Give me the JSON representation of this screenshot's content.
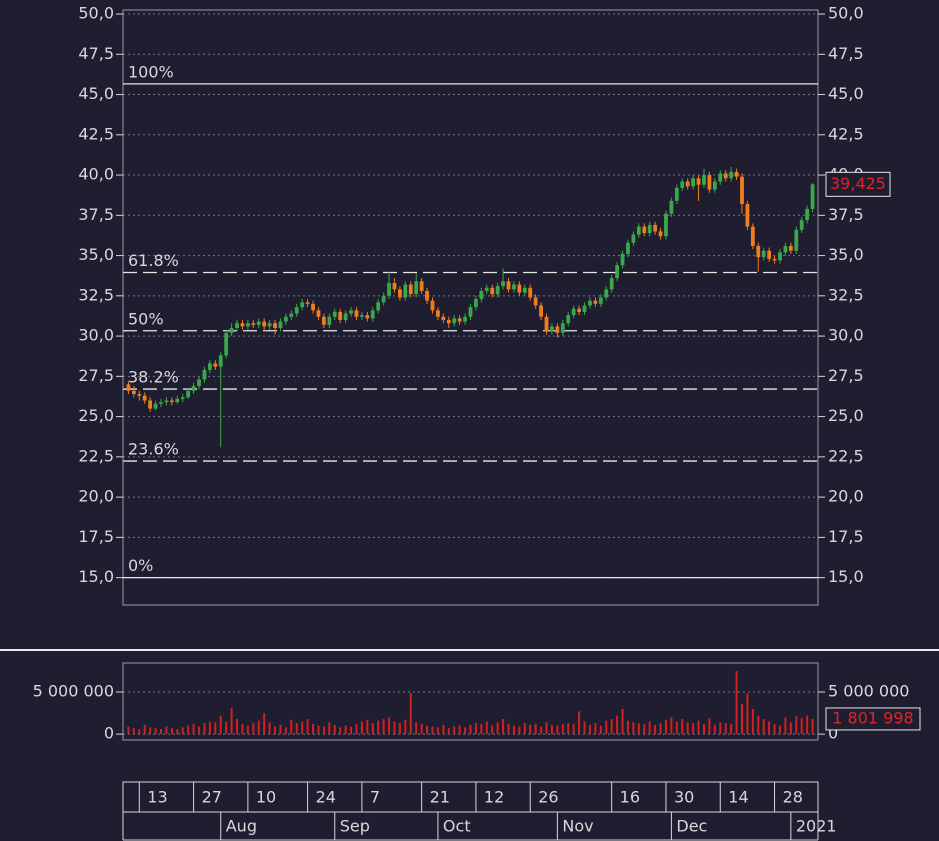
{
  "chart_data": {
    "type": "candlestick",
    "up_color": "#3aa84a",
    "down_color": "#f07c1c",
    "grid": true,
    "xlim": [
      -1,
      127
    ],
    "ylim": [
      13.3,
      50.25
    ],
    "yticks": [
      {
        "value": 15,
        "label": "15,0"
      },
      {
        "value": 17.5,
        "label": "17,5"
      },
      {
        "value": 20,
        "label": "20,0"
      },
      {
        "value": 22.5,
        "label": "22,5"
      },
      {
        "value": 25,
        "label": "25,0"
      },
      {
        "value": 27.5,
        "label": "27,5"
      },
      {
        "value": 30,
        "label": "30,0"
      },
      {
        "value": 32.5,
        "label": "32,5"
      },
      {
        "value": 35,
        "label": "35,0"
      },
      {
        "value": 37.5,
        "label": "37,5"
      },
      {
        "value": 40,
        "label": "40,0"
      },
      {
        "value": 42.5,
        "label": "42,5"
      },
      {
        "value": 45,
        "label": "45,0"
      },
      {
        "value": 47.5,
        "label": "47,5"
      },
      {
        "value": 50,
        "label": "50,0"
      }
    ],
    "fib_levels": [
      {
        "label": "100%",
        "value": 45.66
      },
      {
        "label": "61.8%",
        "value": 33.95
      },
      {
        "label": "50%",
        "value": 30.33
      },
      {
        "label": "38.2%",
        "value": 26.71
      },
      {
        "label": "23.6%",
        "value": 22.24
      },
      {
        "label": "0%",
        "value": 15.0
      }
    ],
    "last_price": {
      "value": 39.425,
      "label": "39,425"
    },
    "candles": [
      [
        27.0,
        27.2,
        26.4,
        26.6
      ],
      [
        26.6,
        26.9,
        26.2,
        26.4
      ],
      [
        26.4,
        26.6,
        26.0,
        26.3
      ],
      [
        26.3,
        26.5,
        25.8,
        26.0
      ],
      [
        26.0,
        26.2,
        25.3,
        25.5
      ],
      [
        25.5,
        26.0,
        25.4,
        25.8
      ],
      [
        25.8,
        26.1,
        25.6,
        25.9
      ],
      [
        25.9,
        26.2,
        25.7,
        26.0
      ],
      [
        26.0,
        26.2,
        25.7,
        25.9
      ],
      [
        25.9,
        26.3,
        25.8,
        26.1
      ],
      [
        26.1,
        26.4,
        25.9,
        26.2
      ],
      [
        26.2,
        26.8,
        26.1,
        26.6
      ],
      [
        26.6,
        27.1,
        26.4,
        26.9
      ],
      [
        26.9,
        27.5,
        26.7,
        27.3
      ],
      [
        27.3,
        28.1,
        27.1,
        27.9
      ],
      [
        27.9,
        28.5,
        27.7,
        28.3
      ],
      [
        28.3,
        28.5,
        27.9,
        28.1
      ],
      [
        28.1,
        29.0,
        23.1,
        28.8
      ],
      [
        28.8,
        30.4,
        28.6,
        30.2
      ],
      [
        30.2,
        30.8,
        30.0,
        30.5
      ],
      [
        30.5,
        31.0,
        30.3,
        30.8
      ],
      [
        30.8,
        31.0,
        30.4,
        30.6
      ],
      [
        30.6,
        31.0,
        30.4,
        30.8
      ],
      [
        30.8,
        31.0,
        30.5,
        30.7
      ],
      [
        30.7,
        31.1,
        30.5,
        30.9
      ],
      [
        30.9,
        31.1,
        30.3,
        30.6
      ],
      [
        30.6,
        31.0,
        30.4,
        30.8
      ],
      [
        30.8,
        31.0,
        30.1,
        30.5
      ],
      [
        30.5,
        31.1,
        30.3,
        30.9
      ],
      [
        30.9,
        31.4,
        30.7,
        31.2
      ],
      [
        31.2,
        31.6,
        31.0,
        31.4
      ],
      [
        31.4,
        32.0,
        31.2,
        31.8
      ],
      [
        31.8,
        32.3,
        31.6,
        32.1
      ],
      [
        32.1,
        32.3,
        31.8,
        32.0
      ],
      [
        32.0,
        32.2,
        31.4,
        31.6
      ],
      [
        31.6,
        31.8,
        31.0,
        31.2
      ],
      [
        31.2,
        31.4,
        30.5,
        30.7
      ],
      [
        30.7,
        31.4,
        30.5,
        31.2
      ],
      [
        31.2,
        31.7,
        31.0,
        31.5
      ],
      [
        31.5,
        31.7,
        30.8,
        31.0
      ],
      [
        31.0,
        31.6,
        30.8,
        31.4
      ],
      [
        31.4,
        31.8,
        31.2,
        31.6
      ],
      [
        31.6,
        31.8,
        31.0,
        31.2
      ],
      [
        31.2,
        31.5,
        31.0,
        31.3
      ],
      [
        31.3,
        31.5,
        30.9,
        31.1
      ],
      [
        31.1,
        31.8,
        30.9,
        31.6
      ],
      [
        31.6,
        32.3,
        31.4,
        32.1
      ],
      [
        32.1,
        32.7,
        31.9,
        32.5
      ],
      [
        32.5,
        34.0,
        32.3,
        33.3
      ],
      [
        33.3,
        33.6,
        32.7,
        32.9
      ],
      [
        32.9,
        33.1,
        32.2,
        32.4
      ],
      [
        32.4,
        33.4,
        32.2,
        33.2
      ],
      [
        33.2,
        33.4,
        32.4,
        32.6
      ],
      [
        32.6,
        33.9,
        32.4,
        33.4
      ],
      [
        33.4,
        33.6,
        32.6,
        32.8
      ],
      [
        32.8,
        33.0,
        32.0,
        32.2
      ],
      [
        32.2,
        32.4,
        31.4,
        31.6
      ],
      [
        31.6,
        31.8,
        31.0,
        31.2
      ],
      [
        31.2,
        31.4,
        30.8,
        31.0
      ],
      [
        31.0,
        31.2,
        30.5,
        30.8
      ],
      [
        30.8,
        31.3,
        30.6,
        31.1
      ],
      [
        31.1,
        31.3,
        30.7,
        30.9
      ],
      [
        30.9,
        31.4,
        30.7,
        31.2
      ],
      [
        31.2,
        32.0,
        31.0,
        31.8
      ],
      [
        31.8,
        32.5,
        31.6,
        32.3
      ],
      [
        32.3,
        33.0,
        32.1,
        32.8
      ],
      [
        32.8,
        33.2,
        32.6,
        33.0
      ],
      [
        33.0,
        33.2,
        32.4,
        32.6
      ],
      [
        32.6,
        33.3,
        32.4,
        33.1
      ],
      [
        33.1,
        34.2,
        32.9,
        33.4
      ],
      [
        33.4,
        33.6,
        32.7,
        32.9
      ],
      [
        32.9,
        33.4,
        32.7,
        33.2
      ],
      [
        33.2,
        33.4,
        32.5,
        32.7
      ],
      [
        32.7,
        33.2,
        32.5,
        33.0
      ],
      [
        33.0,
        33.2,
        32.2,
        32.4
      ],
      [
        32.4,
        32.6,
        31.7,
        31.9
      ],
      [
        31.9,
        32.1,
        31.0,
        31.2
      ],
      [
        31.2,
        31.4,
        30.1,
        30.3
      ],
      [
        30.3,
        30.8,
        30.1,
        30.6
      ],
      [
        30.6,
        30.8,
        29.9,
        30.2
      ],
      [
        30.2,
        31.0,
        30.0,
        30.8
      ],
      [
        30.8,
        31.5,
        30.6,
        31.3
      ],
      [
        31.3,
        31.9,
        31.1,
        31.7
      ],
      [
        31.7,
        31.9,
        31.3,
        31.5
      ],
      [
        31.5,
        32.1,
        31.3,
        31.9
      ],
      [
        31.9,
        32.4,
        31.7,
        32.2
      ],
      [
        32.2,
        32.4,
        31.8,
        32.0
      ],
      [
        32.0,
        32.6,
        31.8,
        32.4
      ],
      [
        32.4,
        33.1,
        32.2,
        32.9
      ],
      [
        32.9,
        33.8,
        32.7,
        33.6
      ],
      [
        33.6,
        34.6,
        33.4,
        34.4
      ],
      [
        34.4,
        35.3,
        34.2,
        35.1
      ],
      [
        35.1,
        36.0,
        34.9,
        35.8
      ],
      [
        35.8,
        36.5,
        35.6,
        36.3
      ],
      [
        36.3,
        37.0,
        36.1,
        36.8
      ],
      [
        36.8,
        37.0,
        36.2,
        36.4
      ],
      [
        36.4,
        37.1,
        36.2,
        36.9
      ],
      [
        36.9,
        37.1,
        36.3,
        36.5
      ],
      [
        36.5,
        36.7,
        36.0,
        36.2
      ],
      [
        36.2,
        37.8,
        36.0,
        37.6
      ],
      [
        37.6,
        38.6,
        37.4,
        38.4
      ],
      [
        38.4,
        39.4,
        38.2,
        39.2
      ],
      [
        39.2,
        39.8,
        39.0,
        39.6
      ],
      [
        39.6,
        39.8,
        39.1,
        39.3
      ],
      [
        39.3,
        40.0,
        39.1,
        39.8
      ],
      [
        39.8,
        40.0,
        38.4,
        39.4
      ],
      [
        39.4,
        40.4,
        39.2,
        40.0
      ],
      [
        40.0,
        40.2,
        38.9,
        39.1
      ],
      [
        39.1,
        39.8,
        38.9,
        39.6
      ],
      [
        39.6,
        40.3,
        39.4,
        40.1
      ],
      [
        40.1,
        40.3,
        39.6,
        39.8
      ],
      [
        39.8,
        40.5,
        39.6,
        40.2
      ],
      [
        40.2,
        40.4,
        39.7,
        39.9
      ],
      [
        39.9,
        40.1,
        37.6,
        38.2
      ],
      [
        38.2,
        38.4,
        36.6,
        36.8
      ],
      [
        36.8,
        37.0,
        35.4,
        35.6
      ],
      [
        35.6,
        35.8,
        34.0,
        34.9
      ],
      [
        34.9,
        35.5,
        34.7,
        35.3
      ],
      [
        35.3,
        35.5,
        34.6,
        34.8
      ],
      [
        34.8,
        35.0,
        34.5,
        34.7
      ],
      [
        34.7,
        35.4,
        34.5,
        35.2
      ],
      [
        35.2,
        35.8,
        35.0,
        35.6
      ],
      [
        35.6,
        35.8,
        35.1,
        35.3
      ],
      [
        35.3,
        36.8,
        35.1,
        36.6
      ],
      [
        36.6,
        37.4,
        36.4,
        37.2
      ],
      [
        37.2,
        38.1,
        37.0,
        37.9
      ],
      [
        37.9,
        39.5,
        37.7,
        39.425
      ]
    ],
    "volume": {
      "color": "#d42020",
      "ylim": [
        -700000,
        8450000
      ],
      "yticks": [
        0,
        {
          "value": 5000000,
          "label": "5 000 000"
        }
      ],
      "last_value": {
        "value": 1801998,
        "label": "1 801 998"
      },
      "values": [
        900000,
        700000,
        600000,
        1100000,
        800000,
        700000,
        600000,
        900000,
        700000,
        600000,
        800000,
        1000000,
        1200000,
        900000,
        1300000,
        1500000,
        1400000,
        2200000,
        1500000,
        3100000,
        1800000,
        1200000,
        1000000,
        1300000,
        1600000,
        2500000,
        1400000,
        900000,
        1100000,
        800000,
        1700000,
        1300000,
        1500000,
        1800000,
        1200000,
        1000000,
        900000,
        1400000,
        1100000,
        800000,
        1000000,
        900000,
        1200000,
        1500000,
        1700000,
        1300000,
        1600000,
        1800000,
        2000000,
        1500000,
        1300000,
        1700000,
        4900000,
        1400000,
        1200000,
        1000000,
        900000,
        800000,
        1100000,
        700000,
        900000,
        1000000,
        800000,
        1100000,
        1300000,
        1200000,
        1500000,
        1000000,
        1400000,
        1800000,
        1200000,
        1000000,
        900000,
        1300000,
        1100000,
        1200000,
        900000,
        1400000,
        1100000,
        1000000,
        1200000,
        1300000,
        1200000,
        2700000,
        1500000,
        1100000,
        1300000,
        1000000,
        1600000,
        1800000,
        2200000,
        3000000,
        1600000,
        1400000,
        1300000,
        1200000,
        1500000,
        1100000,
        1300000,
        1700000,
        2000000,
        1500000,
        1800000,
        1400000,
        1300000,
        1600000,
        1200000,
        1900000,
        1100000,
        1400000,
        1300000,
        1200000,
        7500000,
        3600000,
        4800000,
        3000000,
        2200000,
        1800000,
        1500000,
        1200000,
        1000000,
        2000000,
        1400000,
        2100000,
        1900000,
        2200000,
        1801998
      ]
    },
    "xticks": [
      {
        "value": 2,
        "label": "13"
      },
      {
        "value": 12,
        "label": "27"
      },
      {
        "value": 22,
        "label": "10"
      },
      {
        "value": 33,
        "label": "24"
      },
      {
        "value": 43,
        "label": "7"
      },
      {
        "value": 54,
        "label": "21"
      },
      {
        "value": 64,
        "label": "12"
      },
      {
        "value": 74,
        "label": "26"
      },
      {
        "value": 89,
        "label": "16"
      },
      {
        "value": 99,
        "label": "30"
      },
      {
        "value": 109,
        "label": "14"
      },
      {
        "value": 119,
        "label": "28"
      }
    ],
    "month_ticks": [
      {
        "value": 17,
        "label": "Aug"
      },
      {
        "value": 38,
        "label": "Sep"
      },
      {
        "value": 57,
        "label": "Oct"
      },
      {
        "value": 79,
        "label": "Nov"
      },
      {
        "value": 100,
        "label": "Dec"
      },
      {
        "value": 122,
        "label": "2021"
      }
    ]
  }
}
